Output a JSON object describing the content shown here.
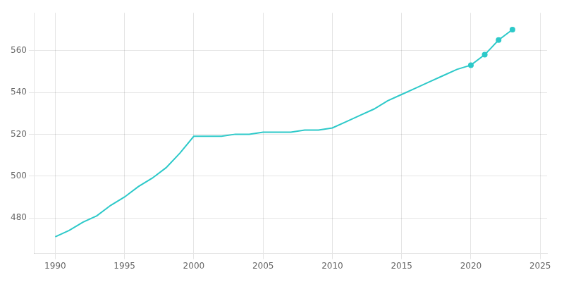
{
  "chart_data": {
    "type": "line",
    "x": [
      1990,
      1991,
      1992,
      1993,
      1994,
      1995,
      1996,
      1997,
      1998,
      1999,
      2000,
      2001,
      2002,
      2003,
      2004,
      2005,
      2006,
      2007,
      2008,
      2009,
      2010,
      2011,
      2012,
      2013,
      2014,
      2015,
      2016,
      2017,
      2018,
      2019,
      2020,
      2021,
      2022,
      2023
    ],
    "series": [
      {
        "values": [
          471,
          474,
          478,
          481,
          486,
          490,
          495,
          499,
          504,
          511,
          519,
          519,
          519,
          520,
          520,
          521,
          521,
          521,
          522,
          522,
          523,
          526,
          529,
          532,
          536,
          539,
          542,
          545,
          548,
          551,
          553,
          558,
          565,
          570
        ],
        "color": "#2DC9C9",
        "marker": "none",
        "line_style": "solid"
      },
      {
        "type": "scatter",
        "values": [
          null,
          null,
          null,
          null,
          null,
          null,
          null,
          null,
          null,
          null,
          null,
          null,
          null,
          null,
          null,
          null,
          null,
          null,
          null,
          null,
          null,
          null,
          null,
          null,
          null,
          null,
          null,
          null,
          null,
          null,
          553,
          558,
          565,
          570
        ],
        "color": "#2DC9C9",
        "marker": "circle"
      }
    ],
    "xlim": [
      1988.5,
      2025.5
    ],
    "xticks": [
      1990,
      1995,
      2000,
      2005,
      2010,
      2015,
      2020,
      2025
    ],
    "ylim": [
      463,
      578
    ],
    "yticks": [
      480,
      500,
      520,
      540,
      560
    ],
    "grid": true
  }
}
